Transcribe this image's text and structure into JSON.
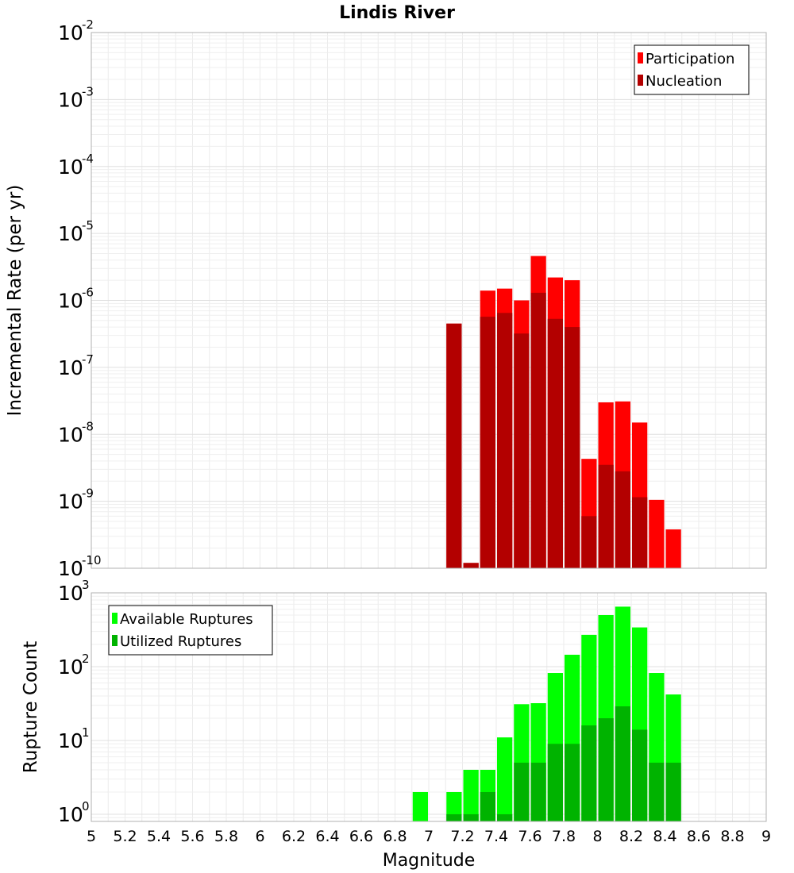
{
  "chart_data": [
    {
      "type": "bar",
      "title": "Lindis River",
      "ylabel": "Incremental Rate (per yr)",
      "y_scale": "log",
      "ylim": [
        1e-10,
        0.01
      ],
      "xlim": [
        5,
        9
      ],
      "bar_width": 0.1,
      "grid": true,
      "legend_position": "top-right",
      "yticks": [
        {
          "base": "10",
          "exp": "-10",
          "v": 1e-10
        },
        {
          "base": "10",
          "exp": "-9",
          "v": 1e-09
        },
        {
          "base": "10",
          "exp": "-8",
          "v": 1e-08
        },
        {
          "base": "10",
          "exp": "-7",
          "v": 1e-07
        },
        {
          "base": "10",
          "exp": "-6",
          "v": 1e-06
        },
        {
          "base": "10",
          "exp": "-5",
          "v": 1e-05
        },
        {
          "base": "10",
          "exp": "-4",
          "v": 0.0001
        },
        {
          "base": "10",
          "exp": "-3",
          "v": 0.001
        },
        {
          "base": "10",
          "exp": "-2",
          "v": 0.01
        }
      ],
      "series": [
        {
          "name": "Participation",
          "color": "#ff0000",
          "x": [
            7.15,
            7.25,
            7.35,
            7.45,
            7.55,
            7.65,
            7.75,
            7.85,
            7.95,
            8.05,
            8.15,
            8.25,
            8.35,
            8.45
          ],
          "values": [
            4.5e-07,
            1.2e-10,
            1.4e-06,
            1.5e-06,
            1e-06,
            4.6e-06,
            2.2e-06,
            2e-06,
            4.3e-09,
            3e-08,
            3.1e-08,
            1.5e-08,
            1.05e-09,
            3.8e-10
          ]
        },
        {
          "name": "Nucleation",
          "color": "#b30000",
          "x": [
            7.15,
            7.25,
            7.35,
            7.45,
            7.55,
            7.65,
            7.75,
            7.85,
            7.95,
            8.05,
            8.15,
            8.25
          ],
          "values": [
            4.5e-07,
            1.2e-10,
            5.7e-07,
            6.5e-07,
            3.2e-07,
            1.3e-06,
            5.3e-07,
            4e-07,
            6e-10,
            3.5e-09,
            2.8e-09,
            1.15e-09
          ]
        }
      ]
    },
    {
      "type": "bar",
      "ylabel": "Rupture Count",
      "xlabel": "Magnitude",
      "y_scale": "log",
      "ylim": [
        0.8,
        1000
      ],
      "xlim": [
        5,
        9
      ],
      "bar_width": 0.1,
      "grid": true,
      "legend_position": "top-left",
      "xticks": [
        "5",
        "5.2",
        "5.4",
        "5.6",
        "5.8",
        "6",
        "6.2",
        "6.4",
        "6.6",
        "6.8",
        "7",
        "7.2",
        "7.4",
        "7.6",
        "7.8",
        "8",
        "8.2",
        "8.4",
        "8.6",
        "8.8",
        "9"
      ],
      "yticks": [
        {
          "base": "10",
          "exp": "0",
          "v": 1
        },
        {
          "base": "10",
          "exp": "1",
          "v": 10
        },
        {
          "base": "10",
          "exp": "2",
          "v": 100
        },
        {
          "base": "10",
          "exp": "3",
          "v": 1000
        }
      ],
      "series": [
        {
          "name": "Available Ruptures",
          "color": "#00ff00",
          "x": [
            6.95,
            7.15,
            7.25,
            7.35,
            7.45,
            7.55,
            7.65,
            7.75,
            7.85,
            7.95,
            8.05,
            8.15,
            8.25,
            8.35,
            8.45
          ],
          "values": [
            2,
            2,
            4,
            4,
            11,
            31,
            32,
            82,
            145,
            270,
            500,
            650,
            340,
            82,
            42
          ]
        },
        {
          "name": "Utilized Ruptures",
          "color": "#00b300",
          "x": [
            7.15,
            7.25,
            7.35,
            7.45,
            7.55,
            7.65,
            7.75,
            7.85,
            7.95,
            8.05,
            8.15,
            8.25,
            8.35,
            8.45
          ],
          "values": [
            1,
            1,
            2,
            1,
            5,
            5,
            9,
            9,
            16,
            20,
            29,
            14,
            5,
            5
          ]
        }
      ]
    }
  ]
}
